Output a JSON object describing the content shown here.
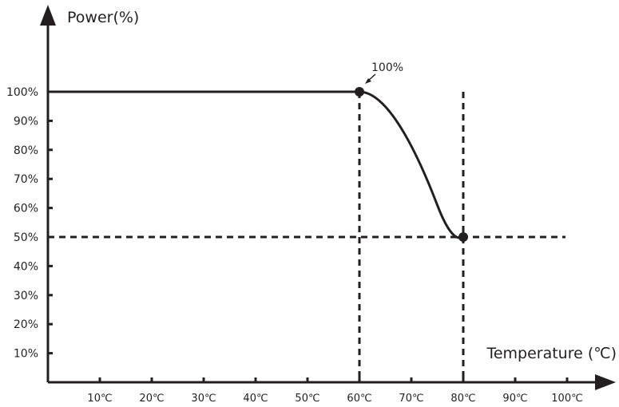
{
  "chart_data": {
    "type": "line",
    "xlabel": "Temperature (℃)",
    "ylabel": "Power(%)",
    "xlim": [
      0,
      100
    ],
    "ylim": [
      0,
      100
    ],
    "x_ticks": [
      "10℃",
      "20℃",
      "30℃",
      "40℃",
      "50℃",
      "60℃",
      "70℃",
      "80℃",
      "90℃",
      "100℃"
    ],
    "y_ticks": [
      "10%",
      "20%",
      "30%",
      "40%",
      "50%",
      "60%",
      "70%",
      "80%",
      "90%",
      "100%"
    ],
    "series": [
      {
        "x": [
          0,
          60,
          80
        ],
        "y": [
          100,
          100,
          50
        ]
      }
    ],
    "points": [
      {
        "x": 60,
        "y": 100
      },
      {
        "x": 80,
        "y": 50
      }
    ],
    "reference_lines": [
      {
        "axis": "x",
        "value": 60
      },
      {
        "axis": "x",
        "value": 80
      },
      {
        "axis": "y",
        "value": 50
      }
    ],
    "annotations": [
      {
        "text": "100%",
        "x": 60,
        "y": 100
      }
    ],
    "grid": false,
    "color": "#231f20"
  }
}
